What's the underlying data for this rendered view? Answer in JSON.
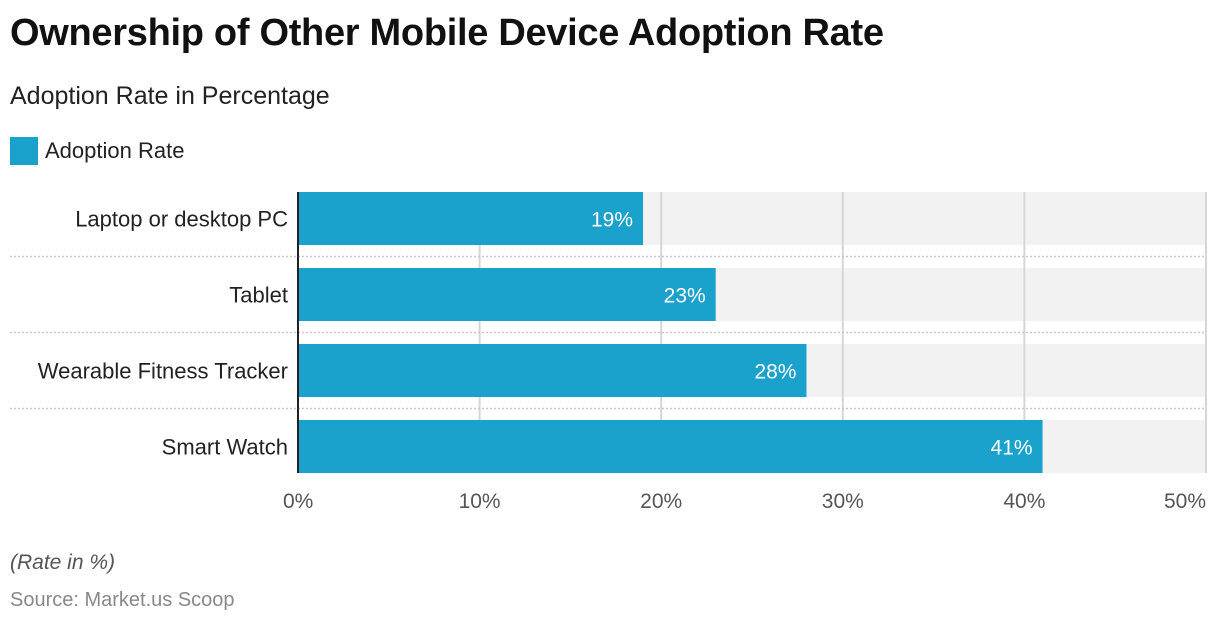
{
  "chart_data": {
    "type": "bar",
    "orientation": "horizontal",
    "title": "Ownership of Other Mobile Device Adoption Rate",
    "subtitle": "Adoption Rate in Percentage",
    "categories": [
      "Laptop or desktop PC",
      "Tablet",
      "Wearable Fitness Tracker",
      "Smart Watch"
    ],
    "series": [
      {
        "name": "Adoption Rate",
        "values": [
          19,
          23,
          28,
          41
        ],
        "labels": [
          "19%",
          "23%",
          "28%",
          "41%"
        ],
        "color": "#1aa1cc"
      }
    ],
    "xlabel": "",
    "ylabel": "",
    "xlim": [
      0,
      50
    ],
    "xticks": [
      0,
      10,
      20,
      30,
      40,
      50
    ],
    "xtick_labels": [
      "0%",
      "10%",
      "20%",
      "30%",
      "40%",
      "50%"
    ],
    "grid": true,
    "legend": "top-left",
    "footnote": "(Rate in %)",
    "source": "Source: Market.us Scoop"
  }
}
